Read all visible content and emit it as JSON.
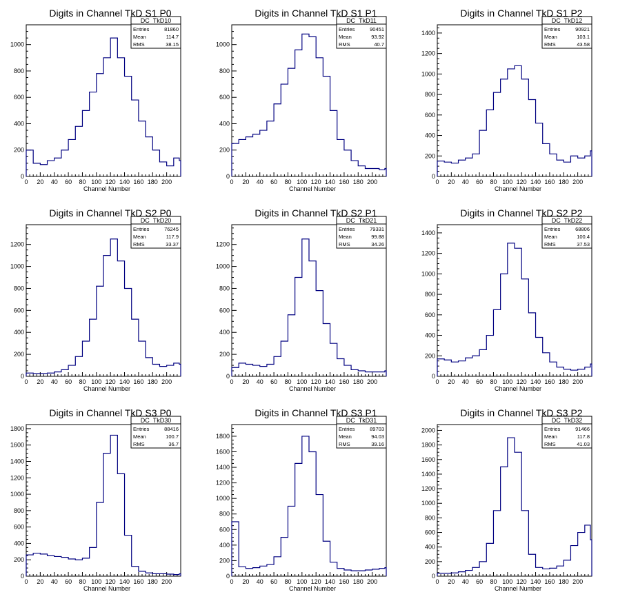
{
  "chart_data": [
    {
      "type": "histogram",
      "title": "Digits in Channel TkD S1 P0",
      "xlabel": "Channel Number",
      "ylabel": "",
      "xlim": [
        0,
        220
      ],
      "ylim": [
        0,
        1150
      ],
      "x_ticks": [
        0,
        20,
        40,
        60,
        80,
        100,
        120,
        140,
        160,
        180,
        200
      ],
      "y_ticks": [
        200,
        400,
        600,
        800,
        1000
      ],
      "stats": {
        "name": "DC_TkD10",
        "entries": "81860",
        "mean": "114.7",
        "rms": "38.15"
      },
      "series": [
        {
          "x": [
            0,
            10,
            20,
            30,
            40,
            50,
            60,
            70,
            80,
            90,
            100,
            110,
            120,
            130,
            140,
            150,
            160,
            170,
            180,
            190,
            200,
            210,
            218
          ],
          "values": [
            200,
            100,
            90,
            120,
            140,
            200,
            280,
            380,
            500,
            640,
            780,
            900,
            1050,
            900,
            760,
            580,
            420,
            300,
            200,
            110,
            80,
            140,
            120
          ]
        }
      ]
    },
    {
      "type": "histogram",
      "title": "Digits in Channel TkD S1 P1",
      "xlabel": "Channel Number",
      "ylabel": "",
      "xlim": [
        0,
        220
      ],
      "ylim": [
        0,
        1150
      ],
      "x_ticks": [
        0,
        20,
        40,
        60,
        80,
        100,
        120,
        140,
        160,
        180,
        200
      ],
      "y_ticks": [
        200,
        400,
        600,
        800,
        1000
      ],
      "stats": {
        "name": "DC_TkD11",
        "entries": "90451",
        "mean": "93.92",
        "rms": "40.7"
      },
      "series": [
        {
          "x": [
            0,
            10,
            20,
            30,
            40,
            50,
            60,
            70,
            80,
            90,
            100,
            110,
            120,
            130,
            140,
            150,
            160,
            170,
            180,
            190,
            200,
            210,
            218
          ],
          "values": [
            250,
            280,
            300,
            320,
            350,
            420,
            550,
            700,
            820,
            960,
            1080,
            1060,
            900,
            760,
            500,
            280,
            200,
            120,
            80,
            60,
            60,
            50,
            60
          ]
        }
      ]
    },
    {
      "type": "histogram",
      "title": "Digits in Channel TkD S1 P2",
      "xlabel": "Channel Number",
      "ylabel": "",
      "xlim": [
        0,
        220
      ],
      "ylim": [
        0,
        1480
      ],
      "x_ticks": [
        0,
        20,
        40,
        60,
        80,
        100,
        120,
        140,
        160,
        180,
        200
      ],
      "y_ticks": [
        200,
        400,
        600,
        800,
        1000,
        1200,
        1400
      ],
      "stats": {
        "name": "DC_TkD12",
        "entries": "90921",
        "mean": "103.1",
        "rms": "43.58"
      },
      "series": [
        {
          "x": [
            0,
            10,
            20,
            30,
            40,
            50,
            60,
            70,
            80,
            90,
            100,
            110,
            120,
            130,
            140,
            150,
            160,
            170,
            180,
            190,
            200,
            210,
            218
          ],
          "values": [
            150,
            140,
            130,
            160,
            180,
            220,
            450,
            650,
            820,
            950,
            1050,
            1080,
            950,
            750,
            520,
            320,
            220,
            160,
            140,
            200,
            180,
            200,
            250
          ]
        }
      ]
    },
    {
      "type": "histogram",
      "title": "Digits in Channel TkD S2 P0",
      "xlabel": "Channel Number",
      "ylabel": "",
      "xlim": [
        0,
        220
      ],
      "ylim": [
        0,
        1380
      ],
      "x_ticks": [
        0,
        20,
        40,
        60,
        80,
        100,
        120,
        140,
        160,
        180,
        200
      ],
      "y_ticks": [
        200,
        400,
        600,
        800,
        1000,
        1200
      ],
      "stats": {
        "name": "DC_TkD20",
        "entries": "76245",
        "mean": "117.9",
        "rms": "33.37"
      },
      "series": [
        {
          "x": [
            0,
            10,
            20,
            30,
            40,
            50,
            60,
            70,
            80,
            90,
            100,
            110,
            120,
            130,
            140,
            150,
            160,
            170,
            180,
            190,
            200,
            210,
            218
          ],
          "values": [
            30,
            25,
            25,
            30,
            40,
            60,
            100,
            180,
            320,
            520,
            820,
            1100,
            1250,
            1050,
            800,
            520,
            320,
            170,
            110,
            90,
            100,
            120,
            110
          ]
        }
      ]
    },
    {
      "type": "histogram",
      "title": "Digits in Channel TkD S2 P1",
      "xlabel": "Channel Number",
      "ylabel": "",
      "xlim": [
        0,
        220
      ],
      "ylim": [
        0,
        1380
      ],
      "x_ticks": [
        0,
        20,
        40,
        60,
        80,
        100,
        120,
        140,
        160,
        180,
        200
      ],
      "y_ticks": [
        200,
        400,
        600,
        800,
        1000,
        1200
      ],
      "stats": {
        "name": "DC_TkD21",
        "entries": "79331",
        "mean": "99.88",
        "rms": "34.26"
      },
      "series": [
        {
          "x": [
            0,
            10,
            20,
            30,
            40,
            50,
            60,
            70,
            80,
            90,
            100,
            110,
            120,
            130,
            140,
            150,
            160,
            170,
            180,
            190,
            200,
            210,
            218
          ],
          "values": [
            80,
            120,
            110,
            100,
            90,
            110,
            180,
            320,
            560,
            900,
            1250,
            1050,
            780,
            480,
            300,
            160,
            100,
            60,
            50,
            40,
            40,
            40,
            50
          ]
        }
      ]
    },
    {
      "type": "histogram",
      "title": "Digits in Channel TkD S2 P2",
      "xlabel": "Channel Number",
      "ylabel": "",
      "xlim": [
        0,
        220
      ],
      "ylim": [
        0,
        1480
      ],
      "x_ticks": [
        0,
        20,
        40,
        60,
        80,
        100,
        120,
        140,
        160,
        180,
        200
      ],
      "y_ticks": [
        200,
        400,
        600,
        800,
        1000,
        1200,
        1400
      ],
      "stats": {
        "name": "DC_TkD22",
        "entries": "68806",
        "mean": "100.4",
        "rms": "37.53"
      },
      "series": [
        {
          "x": [
            0,
            10,
            20,
            30,
            40,
            50,
            60,
            70,
            80,
            90,
            100,
            110,
            120,
            130,
            140,
            150,
            160,
            170,
            180,
            190,
            200,
            210,
            218
          ],
          "values": [
            170,
            160,
            140,
            150,
            180,
            200,
            260,
            400,
            650,
            1000,
            1300,
            1250,
            950,
            620,
            380,
            230,
            140,
            90,
            70,
            60,
            70,
            90,
            120
          ]
        }
      ]
    },
    {
      "type": "histogram",
      "title": "Digits in Channel TkD S3 P0",
      "xlabel": "Channel Number",
      "ylabel": "",
      "xlim": [
        0,
        220
      ],
      "ylim": [
        0,
        1850
      ],
      "x_ticks": [
        0,
        20,
        40,
        60,
        80,
        100,
        120,
        140,
        160,
        180,
        200
      ],
      "y_ticks": [
        200,
        400,
        600,
        800,
        1000,
        1200,
        1400,
        1600,
        1800
      ],
      "stats": {
        "name": "DC_TkD30",
        "entries": "88416",
        "mean": "100.7",
        "rms": "36.7"
      },
      "series": [
        {
          "x": [
            0,
            10,
            20,
            30,
            40,
            50,
            60,
            70,
            80,
            90,
            100,
            110,
            120,
            130,
            140,
            150,
            160,
            170,
            180,
            190,
            200,
            210,
            218
          ],
          "values": [
            260,
            280,
            270,
            250,
            240,
            230,
            210,
            200,
            220,
            350,
            900,
            1500,
            1720,
            1250,
            500,
            120,
            60,
            40,
            30,
            30,
            25,
            20,
            30
          ]
        }
      ]
    },
    {
      "type": "histogram",
      "title": "Digits in Channel TkD S3 P1",
      "xlabel": "Channel Number",
      "ylabel": "",
      "xlim": [
        0,
        220
      ],
      "ylim": [
        0,
        1950
      ],
      "x_ticks": [
        0,
        20,
        40,
        60,
        80,
        100,
        120,
        140,
        160,
        180,
        200
      ],
      "y_ticks": [
        200,
        400,
        600,
        800,
        1000,
        1200,
        1400,
        1600,
        1800
      ],
      "stats": {
        "name": "DC_TkD31",
        "entries": "89703",
        "mean": "94.03",
        "rms": "39.16"
      },
      "series": [
        {
          "x": [
            0,
            10,
            20,
            30,
            40,
            50,
            60,
            70,
            80,
            90,
            100,
            110,
            120,
            130,
            140,
            150,
            160,
            170,
            180,
            190,
            200,
            210,
            218
          ],
          "values": [
            700,
            120,
            100,
            110,
            130,
            150,
            250,
            500,
            900,
            1450,
            1800,
            1600,
            1050,
            450,
            180,
            100,
            80,
            70,
            70,
            80,
            90,
            100,
            110
          ]
        }
      ]
    },
    {
      "type": "histogram",
      "title": "Digits in Channel TkD S3 P2",
      "xlabel": "Channel Number",
      "ylabel": "",
      "xlim": [
        0,
        220
      ],
      "ylim": [
        0,
        2080
      ],
      "x_ticks": [
        0,
        20,
        40,
        60,
        80,
        100,
        120,
        140,
        160,
        180,
        200
      ],
      "y_ticks": [
        200,
        400,
        600,
        800,
        1000,
        1200,
        1400,
        1600,
        1800,
        2000
      ],
      "stats": {
        "name": "DC_TkD32",
        "entries": "91466",
        "mean": "117.8",
        "rms": "41.03"
      },
      "series": [
        {
          "x": [
            0,
            10,
            20,
            30,
            40,
            50,
            60,
            70,
            80,
            90,
            100,
            110,
            120,
            130,
            140,
            150,
            160,
            170,
            180,
            190,
            200,
            210,
            218
          ],
          "values": [
            40,
            40,
            45,
            60,
            80,
            120,
            200,
            450,
            900,
            1500,
            1900,
            1700,
            900,
            300,
            120,
            100,
            110,
            140,
            220,
            420,
            600,
            700,
            500
          ]
        }
      ]
    }
  ]
}
